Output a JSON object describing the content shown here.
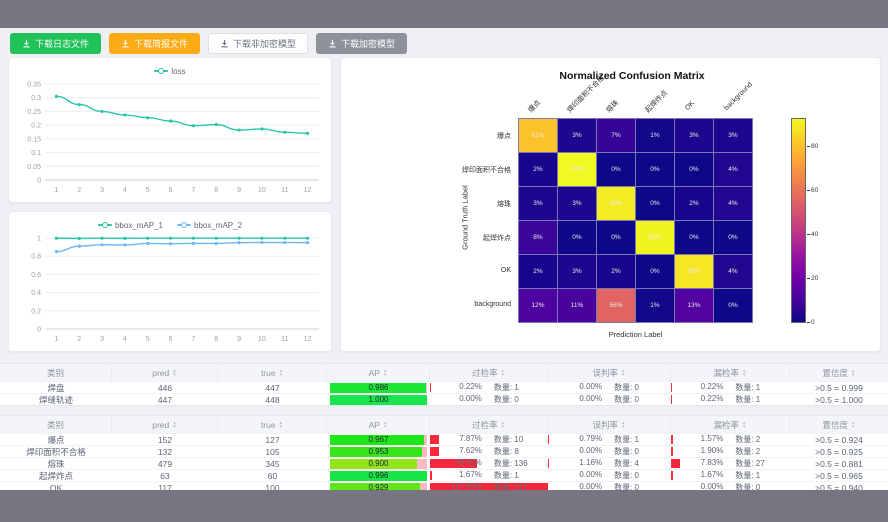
{
  "toolbar": {
    "buttons": [
      {
        "label": "下载日志文件",
        "style": "green"
      },
      {
        "label": "下载简报文件",
        "style": "orange"
      },
      {
        "label": "下载非加密模型",
        "style": "plain"
      },
      {
        "label": "下载加密模型",
        "style": "gray"
      }
    ]
  },
  "loss_chart": {
    "type": "line",
    "x": [
      1,
      2,
      3,
      4,
      5,
      6,
      7,
      8,
      9,
      10,
      11,
      12
    ],
    "yticks": [
      0,
      0.05,
      0.1,
      0.15,
      0.2,
      0.25,
      0.3,
      0.35
    ],
    "series": [
      {
        "name": "loss",
        "color": "#29c5ab",
        "values": [
          0.305,
          0.275,
          0.25,
          0.237,
          0.227,
          0.215,
          0.198,
          0.202,
          0.182,
          0.186,
          0.174,
          0.17
        ]
      }
    ]
  },
  "map_chart": {
    "type": "line",
    "x": [
      1,
      2,
      3,
      4,
      5,
      6,
      7,
      8,
      9,
      10,
      11,
      12
    ],
    "yticks": [
      0,
      0.2,
      0.4,
      0.6,
      0.8,
      1
    ],
    "series": [
      {
        "name": "bbox_mAP_1",
        "color": "#29c5ab",
        "values": [
          0.997,
          0.995,
          0.998,
          0.996,
          0.998,
          0.998,
          0.998,
          0.998,
          0.998,
          0.998,
          0.998,
          0.998
        ]
      },
      {
        "name": "bbox_mAP_2",
        "color": "#6db9f2",
        "values": [
          0.85,
          0.91,
          0.925,
          0.924,
          0.94,
          0.937,
          0.941,
          0.94,
          0.949,
          0.951,
          0.95,
          0.949
        ]
      }
    ]
  },
  "confusion_matrix": {
    "type": "heatmap",
    "title": "Normalized Confusion Matrix",
    "xlabel": "Prediction Label",
    "ylabel": "Ground Truth Label",
    "labels": [
      "爆点",
      "焊印面积不合格",
      "熔珠",
      "起焊炸点",
      "OK",
      "background"
    ],
    "values": [
      [
        81,
        3,
        7,
        1,
        3,
        3
      ],
      [
        2,
        93,
        0,
        0,
        0,
        4
      ],
      [
        3,
        3,
        90,
        0,
        2,
        4
      ],
      [
        8,
        0,
        0,
        92,
        0,
        0
      ],
      [
        2,
        3,
        2,
        0,
        89,
        4
      ],
      [
        12,
        11,
        56,
        1,
        13,
        0
      ]
    ],
    "vmax": 93,
    "colorbar_ticks": [
      0,
      20,
      40,
      60,
      80
    ]
  },
  "table_headers": [
    {
      "label": "类别",
      "sortable": false
    },
    {
      "label": "pred",
      "sortable": true
    },
    {
      "label": "true",
      "sortable": true
    },
    {
      "label": "AP",
      "sortable": true
    },
    {
      "label": "过检率",
      "sortable": true
    },
    {
      "label": "误判率",
      "sortable": true
    },
    {
      "label": "漏检率",
      "sortable": true
    },
    {
      "label": "置信度",
      "sortable": true
    }
  ],
  "count_label": "数量:",
  "tables": [
    {
      "rows": [
        {
          "class": "焊盘",
          "pred": 446,
          "true": 447,
          "ap": 0.986,
          "over": [
            0.22,
            1
          ],
          "mis": [
            0,
            0
          ],
          "miss": [
            0.22,
            1
          ],
          "conf": ">0.5 = 0.999"
        },
        {
          "class": "焊缝轨迹",
          "pred": 447,
          "true": 448,
          "ap": 1.0,
          "over": [
            0,
            0
          ],
          "mis": [
            0,
            0
          ],
          "miss": [
            0.22,
            1
          ],
          "conf": ">0.5 = 1.000"
        }
      ]
    },
    {
      "rows": [
        {
          "class": "爆点",
          "pred": 152,
          "true": 127,
          "ap": 0.967,
          "over": [
            7.87,
            10
          ],
          "mis": [
            0.79,
            1
          ],
          "miss": [
            1.57,
            2
          ],
          "conf": ">0.5 = 0.924"
        },
        {
          "class": "焊印面积不合格",
          "pred": 132,
          "true": 105,
          "ap": 0.953,
          "over": [
            7.62,
            8
          ],
          "mis": [
            0,
            0
          ],
          "miss": [
            1.9,
            2
          ],
          "conf": ">0.5 = 0.925"
        },
        {
          "class": "熔珠",
          "pred": 479,
          "true": 345,
          "ap": 0.9,
          "over": [
            39.42,
            136
          ],
          "mis": [
            1.16,
            4
          ],
          "miss": [
            7.83,
            27
          ],
          "conf": ">0.5 = 0.881"
        },
        {
          "class": "起焊炸点",
          "pred": 63,
          "true": 60,
          "ap": 0.996,
          "over": [
            1.67,
            1
          ],
          "mis": [
            0,
            0
          ],
          "miss": [
            1.67,
            1
          ],
          "conf": ">0.5 = 0.965"
        },
        {
          "class": "OK",
          "pred": 117,
          "true": 100,
          "ap": 0.929,
          "over": [
            117.0,
            117
          ],
          "mis": [
            0,
            0
          ],
          "miss": [
            0,
            0
          ],
          "conf": ">0.5 = 0.940"
        }
      ]
    }
  ]
}
